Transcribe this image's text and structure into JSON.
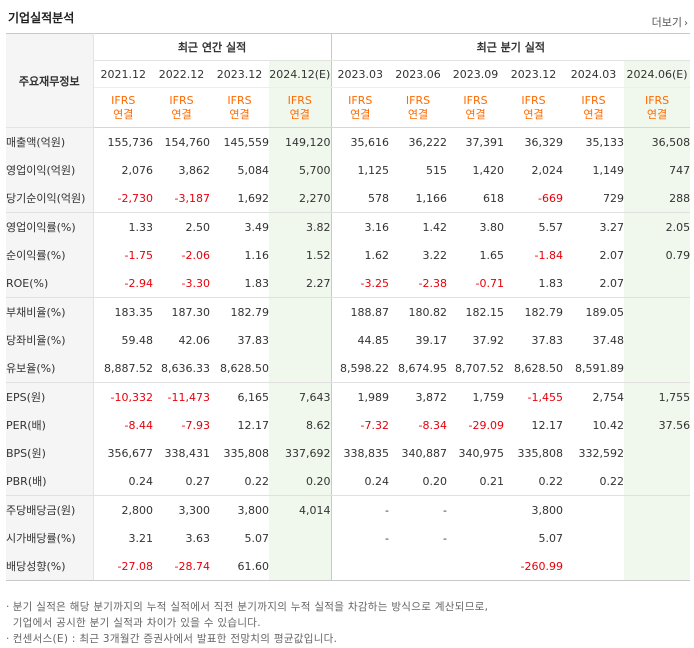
{
  "section_title": "기업실적분석",
  "more_label": "더보기",
  "more_icon": "chevron-right-icon",
  "row_header_label": "주요재무정보",
  "group_annual": "최근 연간 실적",
  "group_quarter": "최근 분기 실적",
  "periods": [
    "2021.12",
    "2022.12",
    "2023.12",
    "2024.12(E)",
    "2023.03",
    "2023.06",
    "2023.09",
    "2023.12",
    "2024.03",
    "2024.06(E)"
  ],
  "basis_line1": "IFRS",
  "basis_line2": "연결",
  "colors": {
    "negative": "#e8000b",
    "ifrs": "#ff6a00",
    "estimate_bg": "#f0f8ee",
    "label_bg": "#f5f5f5"
  },
  "rows": [
    {
      "label": "매출액(억원)",
      "values": [
        "155,736",
        "154,760",
        "145,559",
        "149,120",
        "35,616",
        "36,222",
        "37,391",
        "36,329",
        "35,133",
        "36,508"
      ]
    },
    {
      "label": "영업이익(억원)",
      "values": [
        "2,076",
        "3,862",
        "5,084",
        "5,700",
        "1,125",
        "515",
        "1,420",
        "2,024",
        "1,149",
        "747"
      ]
    },
    {
      "label": "당기순이익(억원)",
      "values": [
        "-2,730",
        "-3,187",
        "1,692",
        "2,270",
        "578",
        "1,166",
        "618",
        "-669",
        "729",
        "288"
      ]
    },
    {
      "label": "영업이익률(%)",
      "values": [
        "1.33",
        "2.50",
        "3.49",
        "3.82",
        "3.16",
        "1.42",
        "3.80",
        "5.57",
        "3.27",
        "2.05"
      ]
    },
    {
      "label": "순이익률(%)",
      "values": [
        "-1.75",
        "-2.06",
        "1.16",
        "1.52",
        "1.62",
        "3.22",
        "1.65",
        "-1.84",
        "2.07",
        "0.79"
      ]
    },
    {
      "label": "ROE(%)",
      "values": [
        "-2.94",
        "-3.30",
        "1.83",
        "2.27",
        "-3.25",
        "-2.38",
        "-0.71",
        "1.83",
        "2.07",
        ""
      ]
    },
    {
      "label": "부채비율(%)",
      "values": [
        "183.35",
        "187.30",
        "182.79",
        "",
        "188.87",
        "180.82",
        "182.15",
        "182.79",
        "189.05",
        ""
      ]
    },
    {
      "label": "당좌비율(%)",
      "values": [
        "59.48",
        "42.06",
        "37.83",
        "",
        "44.85",
        "39.17",
        "37.92",
        "37.83",
        "37.48",
        ""
      ]
    },
    {
      "label": "유보율(%)",
      "values": [
        "8,887.52",
        "8,636.33",
        "8,628.50",
        "",
        "8,598.22",
        "8,674.95",
        "8,707.52",
        "8,628.50",
        "8,591.89",
        ""
      ]
    },
    {
      "label": "EPS(원)",
      "values": [
        "-10,332",
        "-11,473",
        "6,165",
        "7,643",
        "1,989",
        "3,872",
        "1,759",
        "-1,455",
        "2,754",
        "1,755"
      ]
    },
    {
      "label": "PER(배)",
      "values": [
        "-8.44",
        "-7.93",
        "12.17",
        "8.62",
        "-7.32",
        "-8.34",
        "-29.09",
        "12.17",
        "10.42",
        "37.56"
      ]
    },
    {
      "label": "BPS(원)",
      "values": [
        "356,677",
        "338,431",
        "335,808",
        "337,692",
        "338,835",
        "340,887",
        "340,975",
        "335,808",
        "332,592",
        ""
      ]
    },
    {
      "label": "PBR(배)",
      "values": [
        "0.24",
        "0.27",
        "0.22",
        "0.20",
        "0.24",
        "0.20",
        "0.21",
        "0.22",
        "0.22",
        ""
      ]
    },
    {
      "label": "주당배당금(원)",
      "values": [
        "2,800",
        "3,300",
        "3,800",
        "4,014",
        "-",
        "-",
        "",
        "3,800",
        "",
        ""
      ]
    },
    {
      "label": "시가배당률(%)",
      "values": [
        "3.21",
        "3.63",
        "5.07",
        "",
        "-",
        "-",
        "",
        "5.07",
        "",
        ""
      ]
    },
    {
      "label": "배당성향(%)",
      "values": [
        "-27.08",
        "-28.74",
        "61.60",
        "",
        "",
        "",
        "",
        "-260.99",
        "",
        ""
      ]
    }
  ],
  "notes": [
    "분기 실적은 해당 분기까지의 누적 실적에서 직전 분기까지의 누적 실적을 차감하는 방식으로 계산되므로,",
    "기업에서 공시한 분기 실적과 차이가 있을 수 있습니다.",
    "컨센서스(E) : 최근 3개월간 증권사에서 발표한 전망치의 평균값입니다."
  ]
}
